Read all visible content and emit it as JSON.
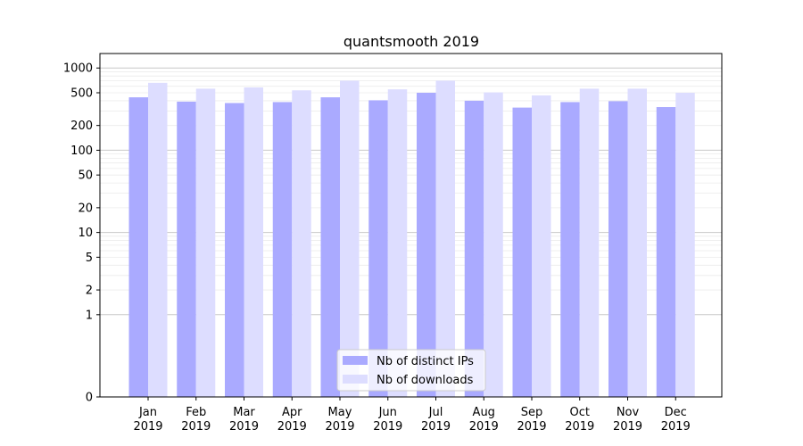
{
  "chart_data": {
    "type": "bar",
    "title": "quantsmooth 2019",
    "xlabel": "",
    "ylabel": "",
    "y_scale": "symlog",
    "ylim": [
      0,
      1500
    ],
    "y_ticks": [
      0,
      1,
      2,
      5,
      10,
      20,
      50,
      100,
      200,
      500,
      1000
    ],
    "y_tick_labels": [
      "0",
      "1",
      "2",
      "5",
      "10",
      "20",
      "50",
      "100",
      "200",
      "500",
      "1000"
    ],
    "grid": true,
    "legend_position": "bottom-center",
    "categories": [
      [
        "Jan",
        "2019"
      ],
      [
        "Feb",
        "2019"
      ],
      [
        "Mar",
        "2019"
      ],
      [
        "Apr",
        "2019"
      ],
      [
        "May",
        "2019"
      ],
      [
        "Jun",
        "2019"
      ],
      [
        "Jul",
        "2019"
      ],
      [
        "Aug",
        "2019"
      ],
      [
        "Sep",
        "2019"
      ],
      [
        "Oct",
        "2019"
      ],
      [
        "Nov",
        "2019"
      ],
      [
        "Dec",
        "2019"
      ]
    ],
    "series": [
      {
        "name": "Nb of distinct IPs",
        "color": "#aaaaff",
        "values": [
          440,
          390,
          375,
          385,
          440,
          405,
          500,
          400,
          330,
          385,
          395,
          335
        ]
      },
      {
        "name": "Nb of downloads",
        "color": "#ddddff",
        "values": [
          660,
          560,
          580,
          535,
          700,
          550,
          700,
          505,
          465,
          560,
          560,
          500
        ]
      }
    ]
  }
}
